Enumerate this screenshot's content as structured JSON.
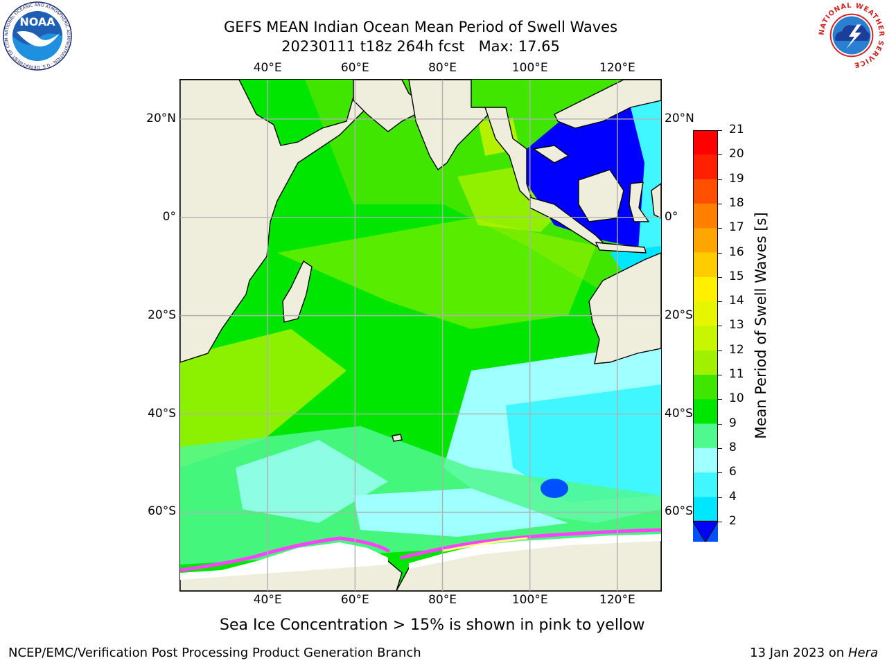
{
  "title": {
    "line1": "GEFS MEAN Indian Ocean Mean Period of Swell Waves",
    "line2": "20230111 t18z 264h fcst   Max: 17.65"
  },
  "map": {
    "lon_ticks": [
      "40°E",
      "60°E",
      "80°E",
      "100°E",
      "120°E"
    ],
    "lat_ticks": [
      "20°N",
      "0°",
      "20°S",
      "40°S",
      "60°S"
    ],
    "lon_range": [
      20,
      130
    ],
    "lat_range": [
      -76,
      28
    ],
    "gridlines": true,
    "land_color": "#efeedc"
  },
  "colorbar": {
    "label": "Mean Period of Swell Waves [s]",
    "ticks": [
      "21",
      "20",
      "19",
      "18",
      "17",
      "16",
      "15",
      "14",
      "13",
      "12",
      "11",
      "10",
      "9",
      "8",
      "6",
      "4",
      "2"
    ],
    "levels": [
      2,
      4,
      6,
      8,
      9,
      10,
      11,
      12,
      13,
      14,
      15,
      16,
      17,
      18,
      19,
      20,
      21
    ],
    "colors": [
      "#0050ff",
      "#00e6ff",
      "#40f6ff",
      "#a0ffff",
      "#50f890",
      "#00e600",
      "#40e600",
      "#a0f000",
      "#c8f500",
      "#e6f500",
      "#fff000",
      "#ffcc00",
      "#ffa500",
      "#ff8000",
      "#ff5000",
      "#ff2000",
      "#ff0000"
    ],
    "underflow_color": "#0000ff"
  },
  "caption": "Sea Ice Concentration > 15% is shown in pink to yellow",
  "footer": {
    "left": "NCEP/EMC/Verification Post Processing Product Generation Branch",
    "date": "13 Jan 2023 on ",
    "machine": "Hera"
  },
  "logos": {
    "noaa": "NOAA",
    "noaa_ring": "NATIONAL OCEANIC AND ATMOSPHERIC ADMINISTRATION · U.S. DEPARTMENT OF COMMERCE ·",
    "nws_ring": "NATIONAL WEATHER SERVICE"
  }
}
